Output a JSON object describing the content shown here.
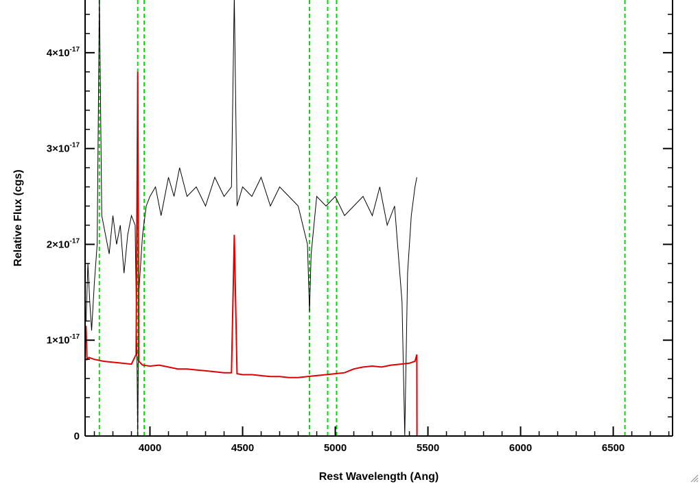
{
  "chart_data": {
    "type": "line",
    "title": "",
    "xlabel": "Rest Wavelength (Ang)",
    "ylabel": "Relative Flux (cgs)",
    "xlim": [
      3650,
      6820
    ],
    "ylim": [
      0,
      4.55e-17
    ],
    "x_ticks": [
      {
        "value": 4000,
        "label": "4000"
      },
      {
        "value": 4500,
        "label": "4500"
      },
      {
        "value": 5000,
        "label": "5000"
      },
      {
        "value": 5500,
        "label": "5500"
      },
      {
        "value": 6000,
        "label": "6000"
      },
      {
        "value": 6500,
        "label": "6500"
      }
    ],
    "y_ticks": [
      {
        "value": 0,
        "mantissa": "0",
        "exponent": ""
      },
      {
        "value": 1e-17,
        "mantissa": "1×10",
        "exponent": "-17"
      },
      {
        "value": 2e-17,
        "mantissa": "2×10",
        "exponent": "-17"
      },
      {
        "value": 3e-17,
        "mantissa": "3×10",
        "exponent": "-17"
      },
      {
        "value": 4e-17,
        "mantissa": "4×10",
        "exponent": "-17"
      }
    ],
    "grid": false,
    "legend": "none",
    "reference_lines": {
      "x": [
        3727,
        3934,
        3969,
        4861,
        4959,
        5007,
        6563
      ],
      "color": "#00dd00",
      "style": "dashed"
    },
    "series": [
      {
        "color": "#000000",
        "style": "solid",
        "x": [
          3655,
          3665,
          3675,
          3685,
          3700,
          3715,
          3727,
          3740,
          3760,
          3780,
          3800,
          3820,
          3840,
          3860,
          3880,
          3900,
          3920,
          3930,
          3934,
          3940,
          3960,
          3980,
          4000,
          4030,
          4060,
          4100,
          4130,
          4160,
          4200,
          4250,
          4300,
          4350,
          4400,
          4440,
          4455,
          4470,
          4500,
          4550,
          4600,
          4650,
          4700,
          4750,
          4800,
          4850,
          4861,
          4870,
          4900,
          4950,
          5000,
          5050,
          5100,
          5150,
          5200,
          5240,
          5280,
          5320,
          5360,
          5375,
          5390,
          5410,
          5430,
          5440
        ],
        "y": [
          1.2e-17,
          1.8e-17,
          1.4e-17,
          1.1e-17,
          1.6e-17,
          2e-17,
          4.6e-17,
          2.3e-17,
          2.1e-17,
          1.9e-17,
          2.3e-17,
          2e-17,
          2.2e-17,
          1.7e-17,
          2.1e-17,
          2.3e-17,
          2.2e-17,
          8e-18,
          0.0,
          1.5e-17,
          2.1e-17,
          2.4e-17,
          2.5e-17,
          2.6e-17,
          2.3e-17,
          2.7e-17,
          2.5e-17,
          2.8e-17,
          2.5e-17,
          2.6e-17,
          2.4e-17,
          2.7e-17,
          2.5e-17,
          2.6e-17,
          4.6e-17,
          2.4e-17,
          2.6e-17,
          2.5e-17,
          2.7e-17,
          2.4e-17,
          2.6e-17,
          2.5e-17,
          2.4e-17,
          2e-17,
          1.3e-17,
          1.9e-17,
          2.5e-17,
          2.4e-17,
          2.5e-17,
          2.3e-17,
          2.4e-17,
          2.5e-17,
          2.3e-17,
          2.6e-17,
          2.2e-17,
          2.4e-17,
          1.4e-17,
          0.0,
          1.7e-17,
          2.3e-17,
          2.6e-17,
          2.7e-17
        ]
      },
      {
        "color": "#dd0000",
        "style": "solid",
        "x": [
          3655,
          3660,
          3670,
          3700,
          3750,
          3800,
          3850,
          3900,
          3925,
          3934,
          3940,
          3960,
          4000,
          4050,
          4100,
          4150,
          4200,
          4250,
          4300,
          4350,
          4400,
          4440,
          4455,
          4470,
          4500,
          4550,
          4600,
          4650,
          4700,
          4750,
          4800,
          4850,
          4900,
          4950,
          5000,
          5050,
          5100,
          5150,
          5200,
          5250,
          5300,
          5350,
          5400,
          5430,
          5440,
          5441,
          5600,
          6000,
          6500,
          6820
        ],
        "y": [
          1.15e-17,
          8e-18,
          8.2e-18,
          8e-18,
          7.8e-18,
          7.7e-18,
          7.6e-18,
          7.5e-18,
          8.5e-18,
          3.8e-17,
          7.8e-18,
          7.4e-18,
          7.3e-18,
          7.4e-18,
          7.2e-18,
          7e-18,
          7e-18,
          6.9e-18,
          6.8e-18,
          6.7e-18,
          6.6e-18,
          6.6e-18,
          2.1e-17,
          6.5e-18,
          6.4e-18,
          6.4e-18,
          6.3e-18,
          6.2e-18,
          6.2e-18,
          6.1e-18,
          6.1e-18,
          6.2e-18,
          6.3e-18,
          6.4e-18,
          6.5e-18,
          6.6e-18,
          7e-18,
          7.2e-18,
          7.3e-18,
          7.2e-18,
          7.4e-18,
          7.5e-18,
          7.6e-18,
          7.8e-18,
          8.5e-18,
          0.0,
          0.0,
          0.0,
          0.0,
          0.0
        ]
      }
    ]
  }
}
